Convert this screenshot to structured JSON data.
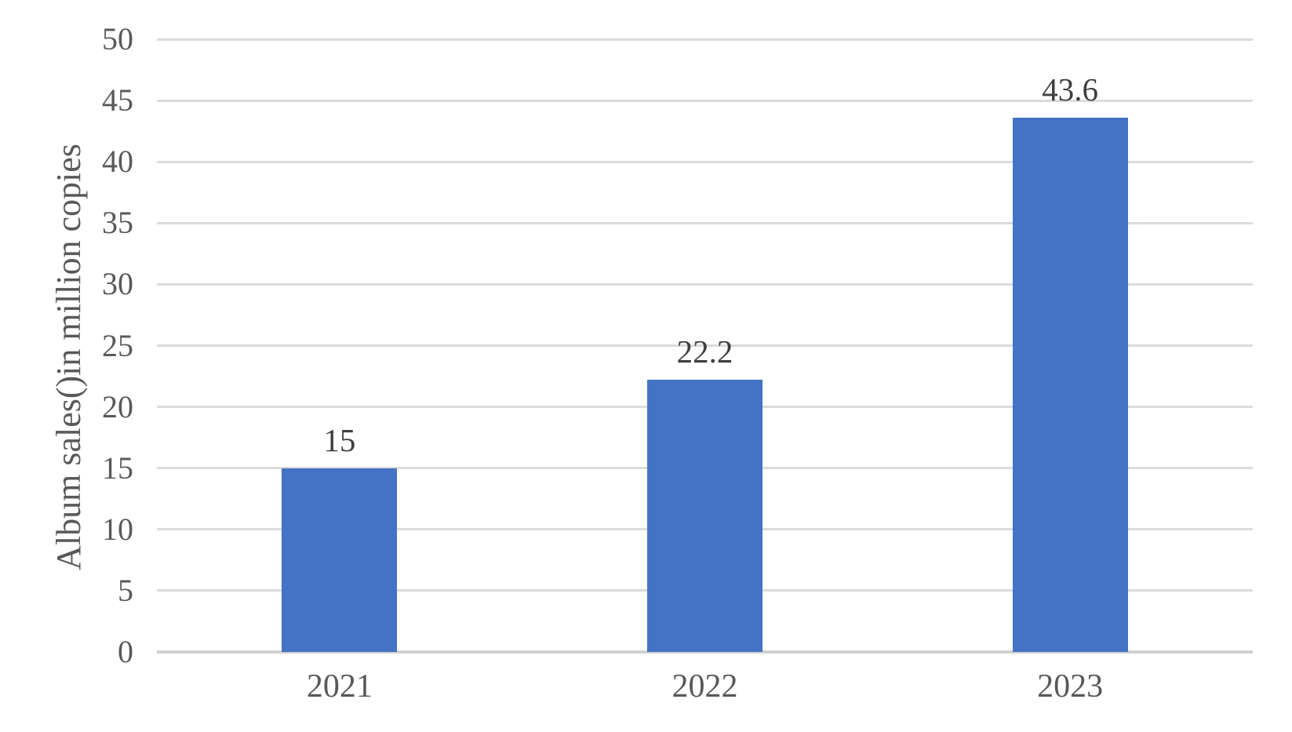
{
  "chart_data": {
    "type": "bar",
    "title": "",
    "categories": [
      "2021",
      "2022",
      "2023"
    ],
    "values": [
      15,
      22.2,
      43.6
    ],
    "value_labels": [
      "15",
      "22.2",
      "43.6"
    ],
    "series": [
      {
        "name": "Album sales",
        "values": [
          15,
          22.2,
          43.6
        ]
      }
    ],
    "xlabel": "",
    "ylabel": "Album sales()in million copies",
    "ylim": [
      0,
      50
    ],
    "ytick_step": 5,
    "yticks": [
      0,
      5,
      10,
      15,
      20,
      25,
      30,
      35,
      40,
      45,
      50
    ],
    "grid": true,
    "legend_position": "none",
    "data_labels_position": "above-bar",
    "colors": {
      "bar": "#4472C4",
      "gridline": "#DBDBDB",
      "baseline": "#D0D0D0",
      "axis_text": "#595959",
      "data_label_text": "#3F3F3F",
      "background": "#FFFFFF"
    }
  }
}
